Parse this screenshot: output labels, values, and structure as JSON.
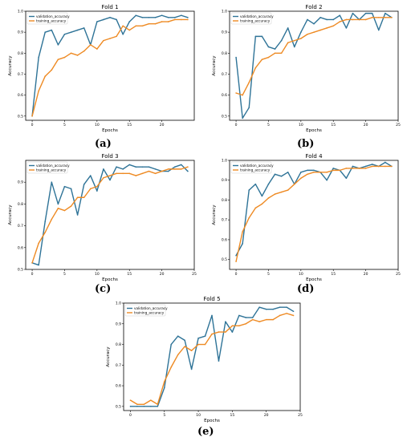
{
  "colors": {
    "validation": "#2e7397",
    "training": "#ee8a23"
  },
  "panel_labels": [
    "(a)",
    "(b)",
    "(c)",
    "(d)",
    "(e)"
  ],
  "chart_data": [
    {
      "type": "line",
      "title": "Fold 1",
      "xlabel": "Epochs",
      "ylabel": "Accuracy",
      "xlim": [
        -1,
        25
      ],
      "ylim": [
        0.48,
        1.0
      ],
      "xticks": [
        0,
        5,
        10,
        15,
        20
      ],
      "yticks": [
        0.5,
        0.6,
        0.7,
        0.8,
        0.9,
        1.0
      ],
      "ytick_labels": [
        "0.5",
        "0.6",
        "0.7",
        "0.8",
        "0.9",
        "1.0"
      ],
      "legend": "top-left",
      "x": [
        0,
        1,
        2,
        3,
        4,
        5,
        6,
        7,
        8,
        9,
        10,
        11,
        12,
        13,
        14,
        15,
        16,
        17,
        18,
        19,
        20,
        21,
        22,
        23,
        24
      ],
      "series": [
        {
          "name": "validation_accuracy",
          "values": [
            0.5,
            0.78,
            0.9,
            0.91,
            0.84,
            0.89,
            0.9,
            0.91,
            0.92,
            0.84,
            0.95,
            0.96,
            0.97,
            0.96,
            0.89,
            0.95,
            0.98,
            0.97,
            0.97,
            0.97,
            0.98,
            0.97,
            0.97,
            0.98,
            0.97
          ]
        },
        {
          "name": "training_accuracy",
          "values": [
            0.5,
            0.62,
            0.69,
            0.72,
            0.77,
            0.78,
            0.8,
            0.79,
            0.81,
            0.84,
            0.82,
            0.86,
            0.87,
            0.88,
            0.93,
            0.91,
            0.93,
            0.93,
            0.94,
            0.94,
            0.95,
            0.95,
            0.96,
            0.96,
            0.96
          ]
        }
      ]
    },
    {
      "type": "line",
      "title": "Fold 2",
      "xlabel": "Epochs",
      "ylabel": "Accuracy",
      "xlim": [
        -1,
        25
      ],
      "ylim": [
        0.48,
        1.0
      ],
      "xticks": [
        0,
        5,
        10,
        15,
        20,
        25
      ],
      "yticks": [
        0.5,
        0.6,
        0.7,
        0.8,
        0.9,
        1.0
      ],
      "ytick_labels": [
        "0.5",
        "0.6",
        "0.7",
        "0.8",
        "0.9",
        "1.0"
      ],
      "legend": "top-left",
      "x": [
        0,
        1,
        2,
        3,
        4,
        5,
        6,
        7,
        8,
        9,
        10,
        11,
        12,
        13,
        14,
        15,
        16,
        17,
        18,
        19,
        20,
        21,
        22,
        23,
        24
      ],
      "series": [
        {
          "name": "validation_accuracy",
          "values": [
            0.78,
            0.49,
            0.54,
            0.88,
            0.88,
            0.83,
            0.82,
            0.86,
            0.92,
            0.83,
            0.9,
            0.96,
            0.94,
            0.97,
            0.96,
            0.96,
            0.98,
            0.92,
            0.99,
            0.96,
            0.99,
            0.99,
            0.91,
            0.99,
            0.97
          ]
        },
        {
          "name": "training_accuracy",
          "values": [
            0.61,
            0.6,
            0.66,
            0.73,
            0.77,
            0.78,
            0.8,
            0.8,
            0.85,
            0.86,
            0.87,
            0.89,
            0.9,
            0.91,
            0.92,
            0.93,
            0.95,
            0.96,
            0.96,
            0.96,
            0.96,
            0.97,
            0.97,
            0.97,
            0.97
          ]
        }
      ]
    },
    {
      "type": "line",
      "title": "Fold 3",
      "xlabel": "Epochs",
      "ylabel": "Accuracy",
      "xlim": [
        -1,
        25
      ],
      "ylim": [
        0.5,
        1.0
      ],
      "xticks": [
        0,
        5,
        10,
        15,
        20,
        25
      ],
      "yticks": [
        0.5,
        0.6,
        0.7,
        0.8,
        0.9
      ],
      "ytick_labels": [
        "0.5",
        "0.6",
        "0.7",
        "0.8",
        "0.9"
      ],
      "legend": "top-left",
      "x": [
        0,
        1,
        2,
        3,
        4,
        5,
        6,
        7,
        8,
        9,
        10,
        11,
        12,
        13,
        14,
        15,
        16,
        17,
        18,
        19,
        20,
        21,
        22,
        23,
        24
      ],
      "series": [
        {
          "name": "validation_accuracy",
          "values": [
            0.53,
            0.52,
            0.72,
            0.9,
            0.8,
            0.88,
            0.87,
            0.75,
            0.89,
            0.93,
            0.86,
            0.96,
            0.91,
            0.97,
            0.96,
            0.98,
            0.97,
            0.97,
            0.97,
            0.96,
            0.95,
            0.95,
            0.97,
            0.98,
            0.95
          ]
        },
        {
          "name": "training_accuracy",
          "values": [
            0.53,
            0.62,
            0.67,
            0.73,
            0.78,
            0.77,
            0.79,
            0.83,
            0.83,
            0.87,
            0.88,
            0.92,
            0.93,
            0.94,
            0.94,
            0.94,
            0.93,
            0.94,
            0.95,
            0.94,
            0.95,
            0.96,
            0.96,
            0.96,
            0.97
          ]
        }
      ]
    },
    {
      "type": "line",
      "title": "Fold 4",
      "xlabel": "Epochs",
      "ylabel": "Accuracy",
      "xlim": [
        -1,
        25
      ],
      "ylim": [
        0.45,
        1.0
      ],
      "xticks": [
        0,
        5,
        10,
        15,
        20,
        25
      ],
      "yticks": [
        0.5,
        0.6,
        0.7,
        0.8,
        0.9,
        1.0
      ],
      "ytick_labels": [
        "0.5",
        "0.6",
        "0.7",
        "0.8",
        "0.9",
        "1.0"
      ],
      "legend": "top-left",
      "x": [
        0,
        1,
        2,
        3,
        4,
        5,
        6,
        7,
        8,
        9,
        10,
        11,
        12,
        13,
        14,
        15,
        16,
        17,
        18,
        19,
        20,
        21,
        22,
        23,
        24
      ],
      "series": [
        {
          "name": "validation_accuracy",
          "values": [
            0.52,
            0.58,
            0.85,
            0.88,
            0.82,
            0.88,
            0.93,
            0.92,
            0.94,
            0.88,
            0.94,
            0.95,
            0.95,
            0.94,
            0.9,
            0.96,
            0.95,
            0.91,
            0.97,
            0.96,
            0.97,
            0.98,
            0.97,
            0.99,
            0.97
          ]
        },
        {
          "name": "training_accuracy",
          "values": [
            0.49,
            0.64,
            0.71,
            0.76,
            0.78,
            0.81,
            0.83,
            0.84,
            0.85,
            0.88,
            0.91,
            0.93,
            0.94,
            0.94,
            0.94,
            0.95,
            0.95,
            0.96,
            0.96,
            0.96,
            0.96,
            0.97,
            0.97,
            0.97,
            0.97
          ]
        }
      ]
    },
    {
      "type": "line",
      "title": "Fold 5",
      "xlabel": "Epochs",
      "ylabel": "Accuracy",
      "xlim": [
        -1,
        25
      ],
      "ylim": [
        0.48,
        1.0
      ],
      "xticks": [
        0,
        5,
        10,
        15,
        20,
        25
      ],
      "yticks": [
        0.5,
        0.6,
        0.7,
        0.8,
        0.9,
        1.0
      ],
      "ytick_labels": [
        "0.5",
        "0.6",
        "0.7",
        "0.8",
        "0.9",
        "1.0"
      ],
      "legend": "top-left",
      "x": [
        0,
        1,
        2,
        3,
        4,
        5,
        6,
        7,
        8,
        9,
        10,
        11,
        12,
        13,
        14,
        15,
        16,
        17,
        18,
        19,
        20,
        21,
        22,
        23,
        24
      ],
      "series": [
        {
          "name": "validation_accuracy",
          "values": [
            0.5,
            0.5,
            0.5,
            0.5,
            0.5,
            0.59,
            0.8,
            0.84,
            0.82,
            0.68,
            0.83,
            0.84,
            0.94,
            0.72,
            0.91,
            0.86,
            0.94,
            0.93,
            0.93,
            0.98,
            0.97,
            0.97,
            0.98,
            0.98,
            0.96
          ]
        },
        {
          "name": "training_accuracy",
          "values": [
            0.53,
            0.51,
            0.51,
            0.53,
            0.51,
            0.62,
            0.69,
            0.75,
            0.79,
            0.77,
            0.8,
            0.8,
            0.85,
            0.86,
            0.86,
            0.89,
            0.89,
            0.9,
            0.92,
            0.91,
            0.92,
            0.92,
            0.94,
            0.95,
            0.94
          ]
        }
      ]
    }
  ]
}
